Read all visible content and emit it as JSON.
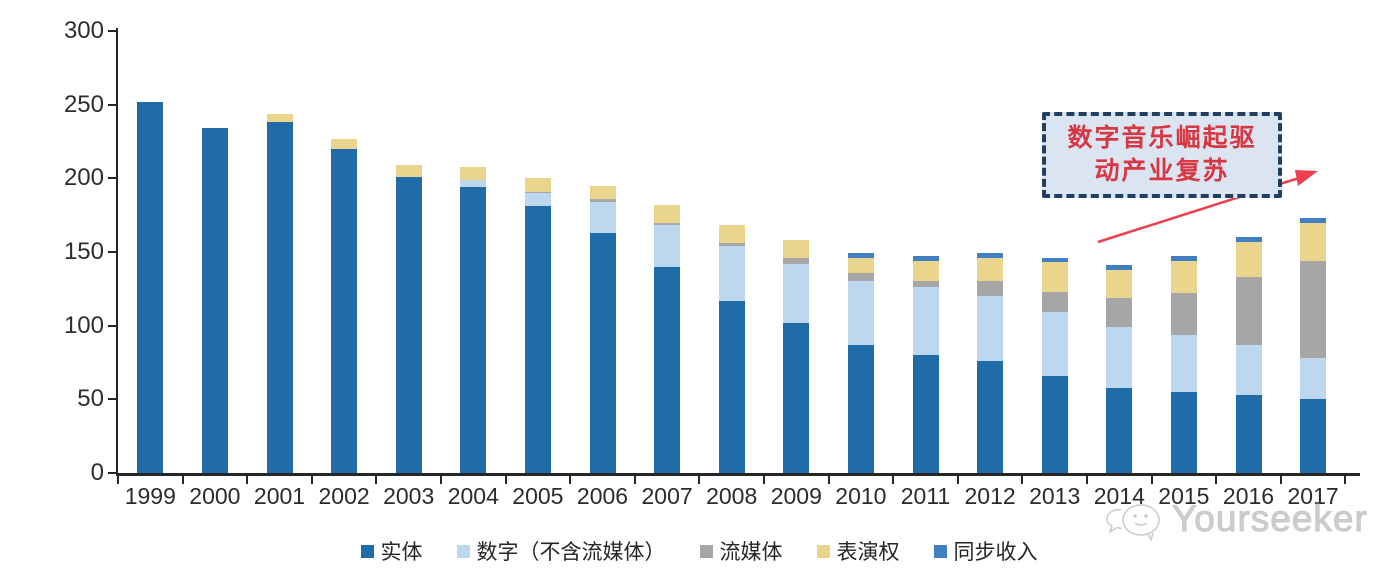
{
  "chart_data": {
    "type": "bar",
    "stacked": true,
    "title": "",
    "xlabel": "",
    "ylabel": "",
    "ylim": [
      0,
      300
    ],
    "yticks": [
      0,
      50,
      100,
      150,
      200,
      250,
      300
    ],
    "grid": false,
    "legend_position": "bottom",
    "categories": [
      "1999",
      "2000",
      "2001",
      "2002",
      "2003",
      "2004",
      "2005",
      "2006",
      "2007",
      "2008",
      "2009",
      "2010",
      "2011",
      "2012",
      "2013",
      "2014",
      "2015",
      "2016",
      "2017"
    ],
    "series": [
      {
        "name": "实体",
        "color": "#1F6CA6",
        "values": [
          252,
          234,
          238,
          220,
          201,
          194,
          181,
          163,
          140,
          117,
          102,
          87,
          80,
          76,
          66,
          58,
          55,
          53,
          50
        ]
      },
      {
        "name": "数字（不含流媒体）",
        "color": "#BDD7EE",
        "values": [
          0,
          0,
          0,
          0,
          0,
          5,
          9,
          21,
          28,
          37,
          40,
          43,
          46,
          44,
          43,
          41,
          39,
          34,
          28
        ]
      },
      {
        "name": "流媒体",
        "color": "#A6A6A6",
        "values": [
          0,
          0,
          0,
          0,
          0,
          0,
          1,
          2,
          2,
          2,
          4,
          6,
          4,
          10,
          14,
          20,
          28,
          46,
          66
        ]
      },
      {
        "name": "表演权",
        "color": "#E9D58D",
        "values": [
          0,
          0,
          6,
          7,
          8,
          9,
          9,
          9,
          12,
          12,
          12,
          10,
          14,
          16,
          20,
          19,
          22,
          24,
          26
        ]
      },
      {
        "name": "同步收入",
        "color": "#4080C0",
        "values": [
          0,
          0,
          0,
          0,
          0,
          0,
          0,
          0,
          0,
          0,
          0,
          3,
          3,
          3,
          3,
          3,
          3,
          3,
          3
        ]
      }
    ]
  },
  "annotation": {
    "text": "数字音乐崛起驱动产业复苏",
    "lines": [
      "数字音乐崛起驱",
      "动产业复苏"
    ],
    "box_fill": "#dbe5f1",
    "border_color": "#1f3f63",
    "text_color": "#d73742",
    "arrow_color": "#ee3f4d"
  },
  "watermark": {
    "text": "Yourseeker"
  }
}
